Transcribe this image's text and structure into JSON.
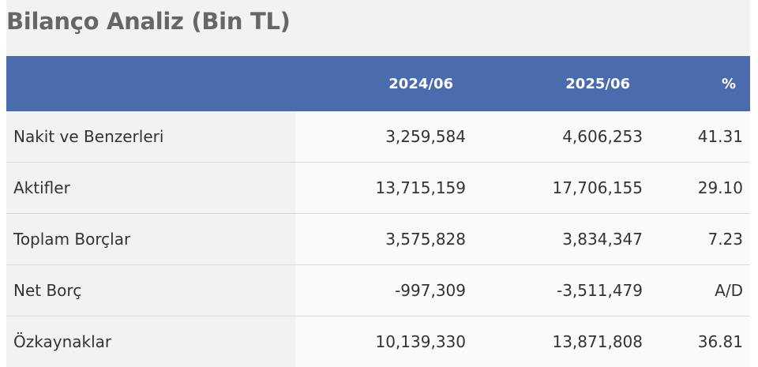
{
  "title": "Bilanço Analiz (Bin TL)",
  "colors": {
    "header_bg": "#4a6bad",
    "header_text": "#ffffff",
    "title_text": "#666666"
  },
  "table": {
    "columns": [
      "",
      "2024/06",
      "2025/06",
      "%"
    ],
    "rows": [
      {
        "label": "Nakit ve Benzerleri",
        "v2024": "3,259,584",
        "v2025": "4,606,253",
        "pct": "41.31"
      },
      {
        "label": "Aktifler",
        "v2024": "13,715,159",
        "v2025": "17,706,155",
        "pct": "29.10"
      },
      {
        "label": "Toplam Borçlar",
        "v2024": "3,575,828",
        "v2025": "3,834,347",
        "pct": "7.23"
      },
      {
        "label": "Net Borç",
        "v2024": "-997,309",
        "v2025": "-3,511,479",
        "pct": "A/D"
      },
      {
        "label": "Özkaynaklar",
        "v2024": "10,139,330",
        "v2025": "13,871,808",
        "pct": "36.81"
      }
    ]
  }
}
